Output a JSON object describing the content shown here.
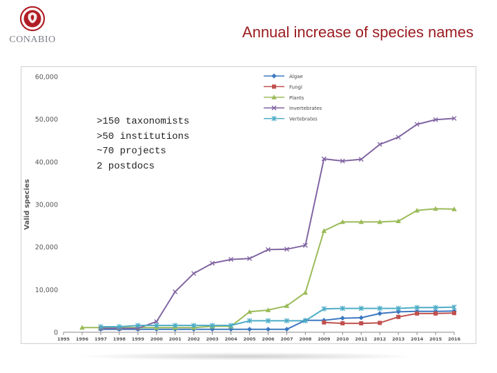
{
  "header": {
    "logo_text": "CONABIO",
    "title": "Annual increase of species names"
  },
  "notes": [
    ">150 taxonomists",
    ">50 institutions",
    "~70 projects",
    "2 postdocs"
  ],
  "colors": {
    "title": "#9b1c20",
    "logo": "#b01e25"
  },
  "chart_data": {
    "type": "line",
    "ylabel": "Valid species",
    "xlabel": "",
    "ylim": [
      0,
      60000
    ],
    "grid": false,
    "legend_position": "top",
    "y_ticks": [
      "0",
      "10,000",
      "20,000",
      "30,000",
      "40,000",
      "50,000",
      "60,000"
    ],
    "x": [
      "1995",
      "1996",
      "1997",
      "1998",
      "1999",
      "2000",
      "2001",
      "2002",
      "2003",
      "2004",
      "2005",
      "2006",
      "2007",
      "2008",
      "2009",
      "2010",
      "2011",
      "2012",
      "2013",
      "2014",
      "2015",
      "2016"
    ],
    "series": [
      {
        "name": "Algae",
        "color": "#3c78c0",
        "marker": "diamond",
        "values": [
          null,
          null,
          700,
          700,
          700,
          700,
          700,
          700,
          700,
          700,
          700,
          700,
          700,
          2800,
          2800,
          3300,
          3400,
          4400,
          4800,
          4900,
          4900,
          5000
        ]
      },
      {
        "name": "Fungi",
        "color": "#c0504d",
        "marker": "square",
        "values": [
          null,
          null,
          null,
          null,
          null,
          null,
          null,
          null,
          null,
          null,
          null,
          null,
          null,
          null,
          2300,
          2100,
          2100,
          2200,
          3600,
          4400,
          4400,
          4500
        ]
      },
      {
        "name": "Plants",
        "color": "#9bbb59",
        "marker": "triangle",
        "values": [
          null,
          1100,
          1100,
          1100,
          1100,
          1100,
          1100,
          1100,
          1400,
          1400,
          4800,
          5200,
          6200,
          9300,
          23800,
          25900,
          25900,
          25900,
          26100,
          28600,
          29000,
          28900
        ]
      },
      {
        "name": "Invertebrates",
        "color": "#8064a2",
        "marker": "x",
        "values": [
          null,
          null,
          900,
          900,
          900,
          2500,
          9500,
          13800,
          16200,
          17100,
          17300,
          19400,
          19500,
          20400,
          40700,
          40200,
          40600,
          44100,
          45800,
          48800,
          49900,
          50200
        ]
      },
      {
        "name": "Vertebrates",
        "color": "#4bacc6",
        "marker": "star",
        "values": [
          null,
          null,
          1300,
          1300,
          1600,
          1600,
          1600,
          1600,
          1600,
          1600,
          2700,
          2700,
          2700,
          2700,
          5500,
          5600,
          5600,
          5600,
          5600,
          5800,
          5800,
          5900
        ]
      }
    ]
  }
}
